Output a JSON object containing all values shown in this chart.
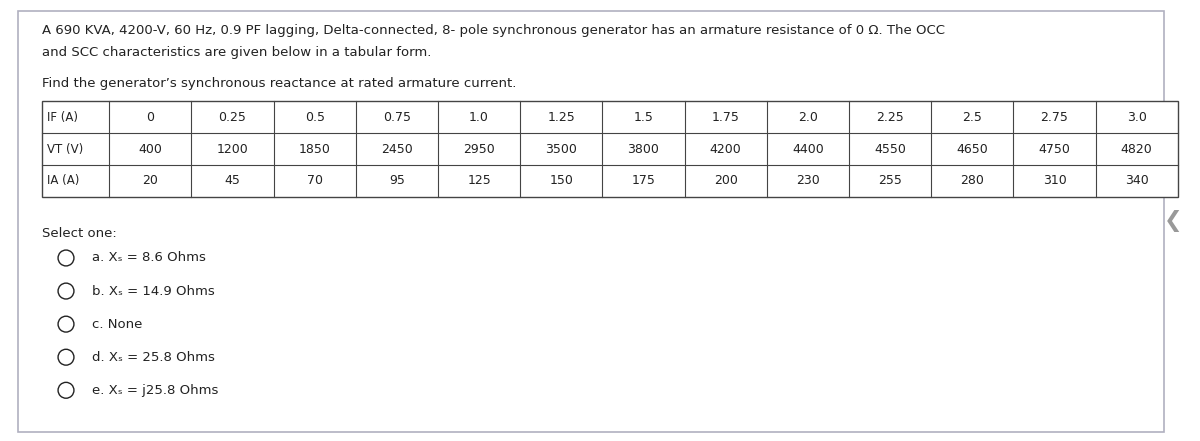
{
  "title_line1": "A 690 KVA, 4200-V, 60 Hz, 0.9 PF lagging, Delta-connected, 8- pole synchronous generator has an armature resistance of 0 Ω. The OCC",
  "title_line2": "and SCC characteristics are given below in a tabular form.",
  "subtitle": "Find the generator’s synchronous reactance at rated armature current.",
  "table": {
    "row1_label": "IF (A)",
    "row1_values": [
      "0",
      "0.25",
      "0.5",
      "0.75",
      "1.0",
      "1.25",
      "1.5",
      "1.75",
      "2.0",
      "2.25",
      "2.5",
      "2.75",
      "3.0"
    ],
    "row2_label": "VT (V)",
    "row2_values": [
      "400",
      "1200",
      "1850",
      "2450",
      "2950",
      "3500",
      "3800",
      "4200",
      "4400",
      "4550",
      "4650",
      "4750",
      "4820"
    ],
    "row3_label": "IA (A)",
    "row3_values": [
      "20",
      "45",
      "70",
      "95",
      "125",
      "150",
      "175",
      "200",
      "230",
      "255",
      "280",
      "310",
      "340"
    ]
  },
  "select_one": "Select one:",
  "options": [
    {
      "label": "a.",
      "text": "Xs = 8.6 Ohms"
    },
    {
      "label": "b.",
      "text": "Xs = 14.9 Ohms"
    },
    {
      "label": "c.",
      "text": "None"
    },
    {
      "label": "d.",
      "text": "Xs = 25.8 Ohms"
    },
    {
      "label": "e.",
      "text": "Xs = j25.8 Ohms"
    }
  ],
  "background_color": "#ffffff",
  "border_color": "#b0b0c0",
  "table_border_color": "#444444",
  "text_color": "#222222",
  "font_size_body": 9.5,
  "font_size_table": 9.0,
  "font_size_options": 9.5
}
